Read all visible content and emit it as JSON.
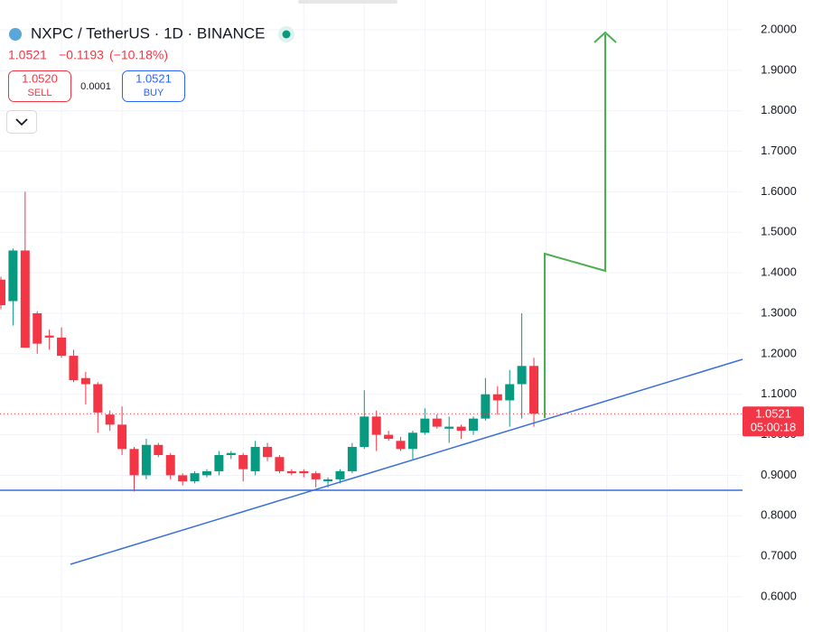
{
  "chart_data": {
    "type": "candlestick",
    "title": "NXPC / TetherUS · 1D · BINANCE",
    "last_price": 1.0521,
    "change": "−0.1193",
    "change_pct": "(−10.18%)",
    "sell_price": "1.0520",
    "sell_label": "SELL",
    "spread": "0.0001",
    "buy_price": "1.0521",
    "buy_label": "BUY",
    "countdown": "05:00:18",
    "up_color": "#089981",
    "down_color": "#f23645",
    "grid": true,
    "categories": [
      null,
      null,
      null,
      null,
      null,
      null,
      null,
      null,
      null,
      null,
      null,
      null,
      null,
      null,
      null,
      null,
      null,
      null,
      null,
      null,
      null,
      null,
      null,
      null,
      null,
      null,
      null,
      null,
      null,
      null,
      null,
      null,
      null,
      null,
      null,
      null,
      null,
      null,
      null,
      null,
      null,
      null,
      null,
      null,
      null
    ],
    "open": [
      1.383,
      1.33,
      1.455,
      1.3,
      1.245,
      1.24,
      1.195,
      1.14,
      1.125,
      1.05,
      1.025,
      0.965,
      0.9,
      0.975,
      0.95,
      0.9,
      0.885,
      0.9,
      0.91,
      0.95,
      0.95,
      0.91,
      0.97,
      0.945,
      0.91,
      0.91,
      0.905,
      0.885,
      0.89,
      0.91,
      0.97,
      1.045,
      1.0,
      0.985,
      0.965,
      1.005,
      1.04,
      1.015,
      1.02,
      1.01,
      1.04,
      1.1,
      1.085,
      1.125,
      1.17
    ],
    "high": [
      1.39,
      1.46,
      1.6,
      1.305,
      1.26,
      1.265,
      1.21,
      1.155,
      1.13,
      1.06,
      1.07,
      0.97,
      0.99,
      0.98,
      0.955,
      0.905,
      0.91,
      0.915,
      0.96,
      0.96,
      0.955,
      0.985,
      0.98,
      0.95,
      0.915,
      0.915,
      0.91,
      0.895,
      0.915,
      0.98,
      1.11,
      1.06,
      1.01,
      0.995,
      1.01,
      1.065,
      1.05,
      1.045,
      1.025,
      1.045,
      1.14,
      1.12,
      1.16,
      1.3,
      1.19
    ],
    "low": [
      1.31,
      1.27,
      1.215,
      1.2,
      1.21,
      1.19,
      1.13,
      1.075,
      1.005,
      1.01,
      0.95,
      0.86,
      0.89,
      0.945,
      0.89,
      0.875,
      0.88,
      0.895,
      0.9,
      0.94,
      0.885,
      0.9,
      0.935,
      0.905,
      0.9,
      0.895,
      0.87,
      0.87,
      0.88,
      0.905,
      0.965,
      0.96,
      0.985,
      0.96,
      0.94,
      1.0,
      1.015,
      0.98,
      0.99,
      1.0,
      1.035,
      1.05,
      1.02,
      1.04,
      1.02
    ],
    "close": [
      1.32,
      1.455,
      1.215,
      1.225,
      1.24,
      1.195,
      1.135,
      1.125,
      1.055,
      1.025,
      0.965,
      0.9,
      0.975,
      0.95,
      0.9,
      0.885,
      0.905,
      0.91,
      0.95,
      0.955,
      0.915,
      0.97,
      0.945,
      0.91,
      0.905,
      0.905,
      0.89,
      0.89,
      0.91,
      0.97,
      1.045,
      1.0,
      0.99,
      0.965,
      1.005,
      1.04,
      1.02,
      1.02,
      1.01,
      1.04,
      1.1,
      1.085,
      1.125,
      1.17,
      1.0521
    ],
    "ylim": [
      0.513,
      2.0736
    ],
    "yticks": [
      {
        "value": 0.6,
        "label": "0.6000"
      },
      {
        "value": 0.7,
        "label": "0.7000"
      },
      {
        "value": 0.8,
        "label": "0.8000"
      },
      {
        "value": 0.9,
        "label": "0.9000"
      },
      {
        "value": 1.0,
        "label": "1.0000"
      },
      {
        "value": 1.1,
        "label": "1.1000"
      },
      {
        "value": 1.2,
        "label": "1.2000"
      },
      {
        "value": 1.3,
        "label": "1.3000"
      },
      {
        "value": 1.4,
        "label": "1.4000"
      },
      {
        "value": 1.5,
        "label": "1.5000"
      },
      {
        "value": 1.6,
        "label": "1.6000"
      },
      {
        "value": 1.7,
        "label": "1.7000"
      },
      {
        "value": 1.8,
        "label": "1.8000"
      },
      {
        "value": 1.9,
        "label": "1.9000"
      },
      {
        "value": 2.0,
        "label": "2.0000"
      }
    ]
  }
}
